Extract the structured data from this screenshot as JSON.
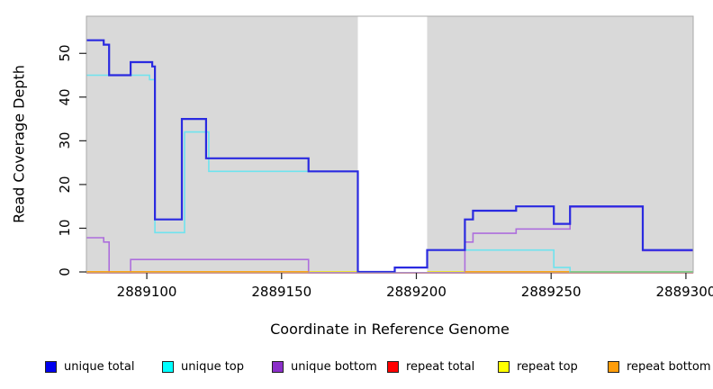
{
  "chart_data": {
    "type": "step-line",
    "title": "",
    "xlabel": "Coordinate in Reference Genome",
    "ylabel": "Read Coverage Depth",
    "xlim": [
      2889077.6,
      2889302.7
    ],
    "ylim": [
      0,
      58.5
    ],
    "xticks": [
      2889100,
      2889150,
      2889200,
      2889250,
      2889300
    ],
    "xtick_labels": [
      "2889100",
      "2889150",
      "2889200",
      "2889250",
      "2889300"
    ],
    "yticks": [
      0,
      10,
      20,
      30,
      40,
      50
    ],
    "ytick_labels": [
      "0",
      "10",
      "20",
      "30",
      "40",
      "50"
    ],
    "plot_bg": "#d9d9d9",
    "plot_border": "#a9a9a9",
    "tick_color": "#222222",
    "gap_region": {
      "start": 2889178.3,
      "end": 2889204,
      "color": "#ffffff"
    },
    "series": [
      {
        "name": "repeat total",
        "color": "#ee1122",
        "lw": 1.2,
        "dy": 1.2,
        "points": [
          [
            2889077.6,
            0
          ],
          [
            2889302.7,
            0
          ]
        ]
      },
      {
        "name": "repeat top",
        "color": "#f5e900",
        "lw": 1.5,
        "dy": 0,
        "points": [
          [
            2889077.6,
            0
          ],
          [
            2889302.7,
            0
          ]
        ]
      },
      {
        "name": "unique bottom",
        "color": "#ad6edd",
        "lw": 1.6,
        "dy": 0.8,
        "points": [
          [
            2889077.6,
            8
          ],
          [
            2889084,
            7
          ],
          [
            2889086,
            0
          ],
          [
            2889094,
            3
          ],
          [
            2889160,
            0
          ],
          [
            2889218,
            7
          ],
          [
            2889221,
            9
          ],
          [
            2889237,
            10
          ],
          [
            2889257,
            15
          ],
          [
            2889284,
            5
          ],
          [
            2889302.7,
            5
          ]
        ]
      },
      {
        "name": "repeat bottom",
        "color": "#ff9d0b",
        "lw": 1.8,
        "dy": 0,
        "segments": [
          [
            [
              2889077.6,
              0
            ],
            [
              2889160,
              0
            ]
          ],
          [
            [
              2889218,
              0
            ],
            [
              2889257,
              0
            ]
          ]
        ]
      },
      {
        "name": "unique top",
        "color": "#6fe3ee",
        "lw": 1.6,
        "dy": 0,
        "points": [
          [
            2889077.6,
            45
          ],
          [
            2889101,
            44
          ],
          [
            2889103,
            9
          ],
          [
            2889114,
            32
          ],
          [
            2889123,
            23
          ],
          [
            2889178.3,
            0
          ],
          [
            2889192,
            1
          ],
          [
            2889204,
            5
          ],
          [
            2889251,
            1
          ],
          [
            2889257,
            0
          ],
          [
            2889302.7,
            0
          ]
        ]
      },
      {
        "name": "unique total",
        "color": "#2a2ae0",
        "lw": 2.2,
        "dy": 0,
        "points": [
          [
            2889077.6,
            53
          ],
          [
            2889084,
            52
          ],
          [
            2889086,
            45
          ],
          [
            2889094,
            48
          ],
          [
            2889102,
            47
          ],
          [
            2889103,
            12
          ],
          [
            2889113,
            35
          ],
          [
            2889122,
            26
          ],
          [
            2889160,
            23
          ],
          [
            2889178.3,
            0
          ],
          [
            2889192,
            1
          ],
          [
            2889204,
            5
          ],
          [
            2889218,
            12
          ],
          [
            2889221,
            14
          ],
          [
            2889237,
            15
          ],
          [
            2889251,
            11
          ],
          [
            2889257,
            15
          ],
          [
            2889284,
            5
          ],
          [
            2889302.7,
            5
          ]
        ]
      }
    ],
    "zero_overlays": [
      {
        "name": "cyan-yellow-blend zero line",
        "color": "#74c776",
        "lw": 1.6,
        "from": 2889257,
        "to": 2889302.7
      }
    ],
    "legend": [
      {
        "label": "unique total",
        "color": "#0000ee"
      },
      {
        "label": "unique top",
        "color": "#00ffff"
      },
      {
        "label": "unique bottom",
        "color": "#8b2fc9"
      },
      {
        "label": "repeat total",
        "color": "#ff0000"
      },
      {
        "label": "repeat top",
        "color": "#ffff00"
      },
      {
        "label": "repeat bottom",
        "color": "#ff9d0b"
      }
    ]
  }
}
